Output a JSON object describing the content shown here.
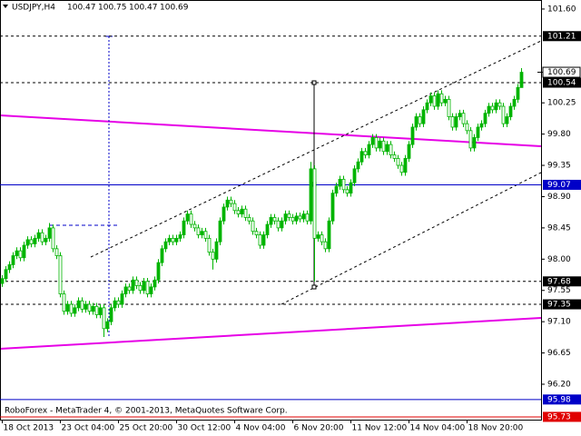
{
  "chart_data": {
    "type": "candlestick",
    "title": "USDJPY,H4",
    "footer": "RoboForex - MetaTrader 4, © 2001-2013, MetaQuotes Software Corp.",
    "categories": [
      "18 Oct 2013",
      null,
      null,
      null,
      null,
      null,
      null,
      null,
      null,
      null,
      null,
      null,
      null,
      null,
      null,
      null,
      "23 Oct 04:00",
      null,
      null,
      null,
      null,
      null,
      null,
      null,
      null,
      null,
      null,
      null,
      null,
      null,
      null,
      null,
      "25 Oct 20:00",
      null,
      null,
      null,
      null,
      null,
      null,
      null,
      null,
      null,
      null,
      null,
      null,
      null,
      null,
      null,
      "30 Oct 12:00",
      null,
      null,
      null,
      null,
      null,
      null,
      null,
      null,
      null,
      null,
      null,
      null,
      null,
      null,
      null,
      "4 Nov 04:00",
      null,
      null,
      null,
      null,
      null,
      null,
      null,
      null,
      null,
      null,
      null,
      null,
      null,
      null,
      null,
      "6 Nov 20:00",
      null,
      null,
      null,
      null,
      null,
      null,
      null,
      null,
      null,
      null,
      null,
      null,
      null,
      null,
      null,
      "11 Nov 12:00",
      null,
      null,
      null,
      null,
      null,
      null,
      null,
      null,
      null,
      null,
      null,
      null,
      null,
      null,
      null,
      "14 Nov 04:00",
      null,
      null,
      null,
      null,
      null,
      null,
      null,
      null,
      null,
      null,
      null,
      null,
      null,
      null,
      null,
      "18 Nov 20:00",
      null,
      null,
      null,
      null,
      null,
      null,
      null,
      null,
      null,
      null,
      null,
      null,
      null,
      null,
      null
    ],
    "open": [
      97.65,
      97.72,
      97.85,
      97.92,
      98.05,
      98.12,
      98.02,
      98.2,
      98.28,
      98.22,
      98.3,
      98.38,
      98.25,
      98.3,
      98.45,
      98.15,
      98.05,
      97.5,
      97.25,
      97.35,
      97.22,
      97.3,
      97.4,
      97.28,
      97.35,
      97.25,
      97.32,
      97.2,
      97.3,
      97.0,
      97.1,
      97.3,
      97.4,
      97.35,
      97.5,
      97.6,
      97.55,
      97.7,
      97.62,
      97.55,
      97.68,
      97.5,
      97.6,
      97.7,
      97.95,
      98.15,
      98.25,
      98.3,
      98.25,
      98.3,
      98.35,
      98.55,
      98.65,
      98.5,
      98.45,
      98.35,
      98.4,
      98.3,
      98.1,
      98.0,
      98.25,
      98.55,
      98.75,
      98.85,
      98.8,
      98.7,
      98.65,
      98.72,
      98.6,
      98.55,
      98.4,
      98.35,
      98.2,
      98.35,
      98.5,
      98.6,
      98.55,
      98.45,
      98.55,
      98.65,
      98.6,
      98.55,
      98.62,
      98.58,
      98.65,
      98.55,
      99.3,
      98.3,
      98.35,
      98.25,
      98.15,
      98.55,
      98.95,
      99.05,
      99.15,
      99.0,
      98.95,
      99.1,
      99.3,
      99.4,
      99.55,
      99.5,
      99.65,
      99.75,
      99.6,
      99.7,
      99.55,
      99.65,
      99.5,
      99.45,
      99.35,
      99.25,
      99.45,
      99.65,
      99.9,
      100.05,
      99.95,
      100.15,
      100.25,
      100.35,
      100.2,
      100.38,
      100.25,
      100.3,
      100.05,
      99.9,
      100.05,
      100.1,
      99.95,
      99.85,
      99.6,
      99.75,
      99.9,
      99.95,
      100.1,
      100.2,
      100.15,
      100.25,
      100.2,
      99.95,
      100.05,
      100.2,
      100.3,
      100.47
    ],
    "high": [
      97.77,
      97.9,
      97.97,
      98.1,
      98.17,
      98.17,
      98.25,
      98.33,
      98.33,
      98.35,
      98.43,
      98.43,
      98.35,
      98.52,
      98.5,
      98.2,
      98.1,
      97.55,
      97.4,
      97.4,
      97.35,
      97.45,
      97.45,
      97.4,
      97.4,
      97.37,
      97.37,
      97.35,
      97.35,
      97.15,
      97.35,
      97.45,
      97.45,
      97.55,
      97.65,
      97.65,
      97.75,
      97.75,
      97.67,
      97.73,
      97.73,
      97.65,
      97.75,
      98.0,
      98.2,
      98.3,
      98.35,
      98.35,
      98.35,
      98.4,
      98.6,
      98.7,
      98.7,
      98.55,
      98.5,
      98.45,
      98.45,
      98.35,
      98.15,
      98.3,
      98.6,
      98.8,
      98.9,
      98.9,
      98.85,
      98.75,
      98.77,
      98.77,
      98.65,
      98.6,
      98.45,
      98.4,
      98.4,
      98.55,
      98.65,
      98.65,
      98.6,
      98.6,
      98.7,
      98.7,
      98.65,
      98.67,
      98.67,
      98.7,
      98.7,
      99.4,
      99.35,
      98.4,
      98.4,
      98.3,
      98.6,
      99.0,
      99.1,
      99.2,
      99.2,
      99.05,
      99.15,
      99.35,
      99.45,
      99.6,
      99.6,
      99.7,
      99.8,
      99.8,
      99.75,
      99.75,
      99.7,
      99.7,
      99.55,
      99.5,
      99.4,
      99.5,
      99.7,
      99.95,
      100.1,
      100.1,
      100.2,
      100.3,
      100.4,
      100.4,
      100.43,
      100.43,
      100.35,
      100.35,
      100.1,
      100.1,
      100.15,
      100.15,
      100.0,
      99.9,
      99.8,
      99.95,
      100.0,
      100.15,
      100.25,
      100.25,
      100.3,
      100.3,
      100.25,
      100.1,
      100.25,
      100.35,
      100.52,
      100.75
    ],
    "low": [
      97.6,
      97.67,
      97.8,
      97.87,
      98.0,
      97.97,
      97.97,
      98.15,
      98.17,
      98.17,
      98.25,
      98.2,
      98.2,
      98.25,
      98.1,
      98.0,
      97.45,
      97.2,
      97.2,
      97.17,
      97.17,
      97.25,
      97.23,
      97.23,
      97.2,
      97.2,
      97.15,
      97.15,
      96.88,
      96.95,
      97.05,
      97.25,
      97.3,
      97.3,
      97.45,
      97.5,
      97.5,
      97.57,
      97.5,
      97.5,
      97.45,
      97.45,
      97.55,
      97.65,
      97.9,
      98.1,
      98.2,
      98.2,
      98.2,
      98.25,
      98.3,
      98.5,
      98.45,
      98.4,
      98.3,
      98.3,
      98.25,
      98.05,
      97.85,
      97.95,
      98.2,
      98.5,
      98.7,
      98.75,
      98.65,
      98.6,
      98.6,
      98.55,
      98.5,
      98.35,
      98.3,
      98.15,
      98.15,
      98.3,
      98.45,
      98.5,
      98.4,
      98.4,
      98.5,
      98.55,
      98.5,
      98.5,
      98.53,
      98.53,
      98.5,
      98.5,
      97.68,
      98.25,
      98.2,
      98.1,
      98.1,
      98.5,
      98.9,
      99.0,
      98.95,
      98.9,
      98.9,
      99.05,
      99.25,
      99.35,
      99.45,
      99.45,
      99.6,
      99.55,
      99.55,
      99.5,
      99.5,
      99.45,
      99.4,
      99.3,
      99.2,
      99.2,
      99.4,
      99.6,
      99.85,
      99.9,
      99.9,
      100.1,
      100.2,
      100.15,
      100.15,
      100.2,
      100.2,
      100.0,
      99.85,
      99.85,
      100.0,
      99.9,
      99.8,
      99.55,
      99.55,
      99.7,
      99.85,
      99.9,
      100.05,
      100.1,
      100.1,
      100.15,
      99.9,
      99.9,
      100.0,
      100.15,
      100.25,
      100.47
    ],
    "close": [
      97.72,
      97.85,
      97.92,
      98.05,
      98.12,
      98.02,
      98.2,
      98.28,
      98.22,
      98.3,
      98.38,
      98.25,
      98.3,
      98.45,
      98.15,
      98.05,
      97.5,
      97.25,
      97.35,
      97.22,
      97.3,
      97.4,
      97.28,
      97.35,
      97.25,
      97.32,
      97.2,
      97.3,
      97.0,
      97.1,
      97.3,
      97.4,
      97.35,
      97.5,
      97.6,
      97.55,
      97.7,
      97.62,
      97.55,
      97.68,
      97.5,
      97.6,
      97.7,
      97.95,
      98.15,
      98.25,
      98.3,
      98.25,
      98.3,
      98.35,
      98.55,
      98.65,
      98.5,
      98.45,
      98.35,
      98.4,
      98.3,
      98.1,
      98.0,
      98.25,
      98.55,
      98.75,
      98.85,
      98.8,
      98.7,
      98.65,
      98.72,
      98.6,
      98.55,
      98.4,
      98.35,
      98.2,
      98.35,
      98.5,
      98.6,
      98.55,
      98.45,
      98.55,
      98.65,
      98.6,
      98.55,
      98.62,
      98.58,
      98.65,
      98.55,
      99.3,
      98.3,
      98.35,
      98.25,
      98.15,
      98.55,
      98.95,
      99.05,
      99.15,
      99.0,
      98.95,
      99.1,
      99.3,
      99.4,
      99.55,
      99.5,
      99.65,
      99.75,
      99.6,
      99.7,
      99.55,
      99.65,
      99.5,
      99.45,
      99.35,
      99.25,
      99.45,
      99.65,
      99.9,
      100.05,
      99.95,
      100.15,
      100.25,
      100.35,
      100.2,
      100.38,
      100.25,
      100.3,
      100.05,
      99.9,
      100.05,
      100.1,
      99.95,
      99.85,
      99.6,
      99.75,
      99.9,
      99.95,
      100.1,
      100.2,
      100.15,
      100.25,
      100.2,
      99.95,
      100.05,
      100.2,
      100.3,
      100.47,
      100.69
    ],
    "up_color": "#00b400",
    "down_color": "#ffffff",
    "wick_color": "#00b400",
    "ylim": [
      95.69,
      101.73
    ],
    "yticks": [
      {
        "value": 101.6,
        "label": "101.60"
      },
      100.25,
      {
        "value": 99.8,
        "label": "99.80"
      },
      99.35,
      {
        "value": 98.9,
        "label": "98.90"
      },
      98.45,
      {
        "value": 98,
        "label": "98.00"
      },
      97.55,
      {
        "value": 97.1,
        "label": "97.10"
      },
      96.65,
      {
        "value": 96.2,
        "label": "96.20"
      }
    ],
    "levels": [
      {
        "value": 101.21,
        "color": "#000000",
        "style": "dashed",
        "label_color": "#000000"
      },
      {
        "value": 100.54,
        "color": "#000000",
        "style": "dashed",
        "label_color": "#000000"
      },
      {
        "value": 99.07,
        "color": "#0000c8",
        "style": "solid",
        "label_color": "#0000c8"
      },
      {
        "value": 97.68,
        "color": "#000000",
        "style": "dashed",
        "label_color": "#000000"
      },
      {
        "value": 97.35,
        "color": "#000000",
        "style": "dashed",
        "label_color": "#000000"
      },
      {
        "value": 95.98,
        "color": "#0000c8",
        "style": "solid",
        "label_color": "#0000c8"
      },
      {
        "value": 95.73,
        "color": "#e00000",
        "style": "solid",
        "label_color": "#e00000"
      }
    ],
    "grid": false
  }
}
